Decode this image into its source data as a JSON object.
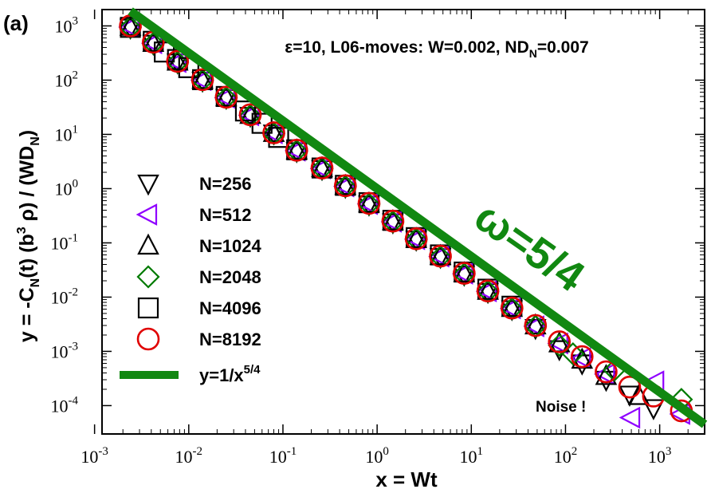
{
  "panel_label": "(a)",
  "chart_data": {
    "type": "scatter",
    "scale": "log-log",
    "title": "ε=10, L06-moves: W=0.002, ND_N=0.007",
    "title_parts": {
      "main": "ε=10, L06-moves: W=0.002, ND",
      "sub": "N",
      "tail": "=0.007"
    },
    "xlabel": "x =  Wt",
    "ylabel": "y = -C_N(t) (b^3 ρ) / (WD_N)",
    "xlim": [
      0.0012,
      3000
    ],
    "ylim": [
      3e-05,
      2000
    ],
    "x_ticks": [
      {
        "value": 0.001,
        "base": "10",
        "exp": "-3"
      },
      {
        "value": 0.01,
        "base": "10",
        "exp": "-2"
      },
      {
        "value": 0.1,
        "base": "10",
        "exp": "-1"
      },
      {
        "value": 1,
        "base": "10",
        "exp": "0"
      },
      {
        "value": 10,
        "base": "10",
        "exp": "1"
      },
      {
        "value": 100,
        "base": "10",
        "exp": "2"
      },
      {
        "value": 1000,
        "base": "10",
        "exp": "3"
      }
    ],
    "y_ticks": [
      {
        "value": 0.0001,
        "base": "10",
        "exp": "-4"
      },
      {
        "value": 0.001,
        "base": "10",
        "exp": "-3"
      },
      {
        "value": 0.01,
        "base": "10",
        "exp": "-2"
      },
      {
        "value": 0.1,
        "base": "10",
        "exp": "-1"
      },
      {
        "value": 1,
        "base": "10",
        "exp": "0"
      },
      {
        "value": 10,
        "base": "10",
        "exp": "1"
      },
      {
        "value": 100,
        "base": "10",
        "exp": "2"
      },
      {
        "value": 1000,
        "base": "10",
        "exp": "3"
      }
    ],
    "series": [
      {
        "name": "N=256",
        "marker": "triangle-down",
        "color": "#000000",
        "x": [
          0.0024,
          0.0042,
          0.0076,
          0.014,
          0.025,
          0.045,
          0.08,
          0.14,
          0.26,
          0.46,
          0.82,
          1.47,
          2.6,
          4.7,
          8.4,
          15,
          27,
          48,
          86,
          150,
          270,
          480,
          860
        ],
        "y": [
          930,
          470,
          212,
          98,
          47,
          22,
          10.4,
          4.9,
          2.3,
          1.08,
          0.51,
          0.24,
          0.115,
          0.055,
          0.026,
          0.0125,
          0.006,
          0.0027,
          0.0011,
          0.0006,
          0.0003,
          0.00016,
          9e-05
        ]
      },
      {
        "name": "N=512",
        "marker": "triangle-left",
        "color": "#8f00ff",
        "x": [
          0.0024,
          0.0042,
          0.0076,
          0.014,
          0.025,
          0.045,
          0.08,
          0.14,
          0.26,
          0.46,
          0.82,
          1.47,
          2.6,
          4.7,
          8.4,
          15,
          27,
          48,
          86,
          150,
          270,
          500,
          900,
          1700
        ],
        "y": [
          950,
          480,
          215,
          100,
          47.5,
          22.5,
          10.5,
          5,
          2.35,
          1.1,
          0.52,
          0.245,
          0.117,
          0.056,
          0.027,
          0.0128,
          0.0062,
          0.0029,
          0.0014,
          0.00075,
          0.00038,
          6e-05,
          0.00028,
          7e-05
        ]
      },
      {
        "name": "N=1024",
        "marker": "triangle-up",
        "color": "#000000",
        "x": [
          0.0024,
          0.0042,
          0.0076,
          0.014,
          0.025,
          0.045,
          0.08,
          0.14,
          0.26,
          0.46,
          0.82,
          1.47,
          2.6,
          4.7,
          8.4,
          15,
          27,
          48,
          86,
          150,
          270,
          600
        ],
        "y": [
          960,
          485,
          218,
          101,
          48,
          22.8,
          10.6,
          5.05,
          2.38,
          1.12,
          0.53,
          0.25,
          0.118,
          0.057,
          0.0275,
          0.013,
          0.0063,
          0.003,
          0.0014,
          0.0007,
          0.00035,
          0.00015
        ]
      },
      {
        "name": "N=2048",
        "marker": "diamond",
        "color": "#007a00",
        "x": [
          0.0024,
          0.0042,
          0.0076,
          0.014,
          0.025,
          0.045,
          0.08,
          0.14,
          0.26,
          0.46,
          0.82,
          1.47,
          2.6,
          4.7,
          8.4,
          15,
          27,
          48,
          86,
          120,
          330,
          1700
        ],
        "y": [
          940,
          475,
          213,
          99,
          47,
          22.2,
          10.3,
          4.95,
          2.33,
          1.09,
          0.515,
          0.243,
          0.116,
          0.055,
          0.0265,
          0.0127,
          0.0061,
          0.0029,
          0.0013,
          0.0009,
          0.00045,
          0.00013
        ]
      },
      {
        "name": "N=4096",
        "marker": "square",
        "color": "#000000",
        "x": [
          0.0024,
          0.0042,
          0.0055,
          0.0076,
          0.01,
          0.014,
          0.025,
          0.04,
          0.06,
          0.09,
          0.14,
          0.26,
          0.46,
          0.82,
          1.47,
          2.6,
          4.7,
          8.4,
          15,
          27
        ],
        "y": [
          940,
          520,
          330,
          240,
          170,
          102,
          50,
          27,
          16,
          8.8,
          5.2,
          2.4,
          1.15,
          0.55,
          0.26,
          0.125,
          0.06,
          0.029,
          0.014,
          0.0068
        ]
      },
      {
        "name": "N=8192",
        "marker": "circle",
        "color": "#e00000",
        "x": [
          0.0024,
          0.0042,
          0.0076,
          0.014,
          0.025,
          0.045,
          0.08,
          0.14,
          0.26,
          0.46,
          0.82,
          1.47,
          2.6,
          4.7,
          8.4,
          15,
          27,
          48,
          86,
          150,
          270,
          480,
          860,
          1700
        ],
        "y": [
          1000,
          500,
          222,
          102,
          48.5,
          23,
          10.7,
          5.1,
          2.4,
          1.13,
          0.535,
          0.252,
          0.119,
          0.057,
          0.0275,
          0.013,
          0.0063,
          0.003,
          0.0015,
          0.0008,
          0.00042,
          0.00022,
          0.00015,
          8e-05
        ]
      }
    ],
    "fit_line": {
      "name": "y=1/x^5/4",
      "label_main": "y=1/x",
      "label_exp": "5/4",
      "color": "#118811",
      "exponent": -1.25,
      "x_range": [
        0.0024,
        3000
      ]
    },
    "legend": {
      "placement": "left-center",
      "entries": [
        {
          "label": "N=256"
        },
        {
          "label": "N=512"
        },
        {
          "label": "N=1024"
        },
        {
          "label": "N=2048"
        },
        {
          "label": "N=4096"
        },
        {
          "label": "N=8192"
        }
      ]
    },
    "annotations": {
      "omega": "ω=5/4",
      "noise": "Noise !"
    }
  }
}
